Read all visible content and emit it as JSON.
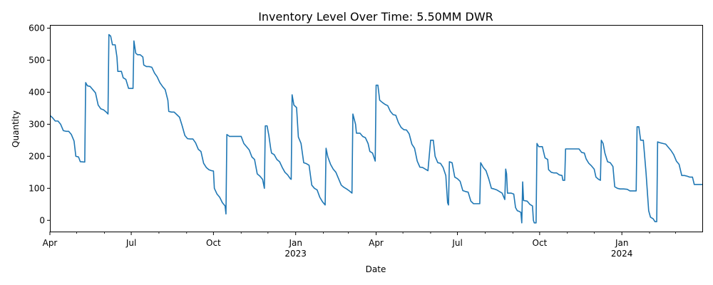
{
  "chart_data": {
    "type": "line",
    "title": "Inventory Level Over Time: 5.50MM DWR",
    "xlabel": "Date",
    "ylabel": "Quantity",
    "xlim": [
      "2022-04-01",
      "2024-03-31"
    ],
    "ylim": [
      -35,
      610
    ],
    "grid": false,
    "color": "#1f77b4",
    "x_ticks": [
      {
        "date": "2022-04-01",
        "label": "Apr",
        "sublabel": ""
      },
      {
        "date": "2022-07-01",
        "label": "Jul",
        "sublabel": ""
      },
      {
        "date": "2022-10-01",
        "label": "Oct",
        "sublabel": ""
      },
      {
        "date": "2023-01-01",
        "label": "Jan",
        "sublabel": "2023"
      },
      {
        "date": "2023-04-01",
        "label": "Apr",
        "sublabel": ""
      },
      {
        "date": "2023-07-01",
        "label": "Jul",
        "sublabel": ""
      },
      {
        "date": "2023-10-01",
        "label": "Oct",
        "sublabel": ""
      },
      {
        "date": "2024-01-01",
        "label": "Jan",
        "sublabel": "2024"
      }
    ],
    "y_ticks": [
      0,
      100,
      200,
      300,
      400,
      500,
      600
    ],
    "series": [
      {
        "name": "",
        "points": [
          [
            "2022-04-01",
            328
          ],
          [
            "2022-04-04",
            320
          ],
          [
            "2022-04-07",
            310
          ],
          [
            "2022-04-10",
            310
          ],
          [
            "2022-04-13",
            300
          ],
          [
            "2022-04-16",
            280
          ],
          [
            "2022-04-19",
            278
          ],
          [
            "2022-04-22",
            278
          ],
          [
            "2022-04-25",
            268
          ],
          [
            "2022-04-28",
            248
          ],
          [
            "2022-04-30",
            200
          ],
          [
            "2022-05-03",
            198
          ],
          [
            "2022-05-05",
            183
          ],
          [
            "2022-05-10",
            182
          ],
          [
            "2022-05-11",
            430
          ],
          [
            "2022-05-13",
            420
          ],
          [
            "2022-05-16",
            418
          ],
          [
            "2022-05-19",
            408
          ],
          [
            "2022-05-22",
            398
          ],
          [
            "2022-05-25",
            360
          ],
          [
            "2022-05-28",
            348
          ],
          [
            "2022-05-31",
            345
          ],
          [
            "2022-06-03",
            338
          ],
          [
            "2022-06-05",
            332
          ],
          [
            "2022-06-06",
            580
          ],
          [
            "2022-06-08",
            575
          ],
          [
            "2022-06-10",
            548
          ],
          [
            "2022-06-13",
            548
          ],
          [
            "2022-06-15",
            510
          ],
          [
            "2022-06-16",
            465
          ],
          [
            "2022-06-20",
            465
          ],
          [
            "2022-06-22",
            445
          ],
          [
            "2022-06-25",
            440
          ],
          [
            "2022-06-28",
            412
          ],
          [
            "2022-07-03",
            412
          ],
          [
            "2022-07-04",
            560
          ],
          [
            "2022-07-06",
            522
          ],
          [
            "2022-07-08",
            517
          ],
          [
            "2022-07-11",
            517
          ],
          [
            "2022-07-14",
            510
          ],
          [
            "2022-07-15",
            485
          ],
          [
            "2022-07-18",
            480
          ],
          [
            "2022-07-21",
            480
          ],
          [
            "2022-07-24",
            478
          ],
          [
            "2022-07-27",
            460
          ],
          [
            "2022-07-30",
            448
          ],
          [
            "2022-08-02",
            430
          ],
          [
            "2022-08-05",
            418
          ],
          [
            "2022-08-08",
            408
          ],
          [
            "2022-08-11",
            375
          ],
          [
            "2022-08-12",
            340
          ],
          [
            "2022-08-15",
            338
          ],
          [
            "2022-08-18",
            338
          ],
          [
            "2022-08-21",
            330
          ],
          [
            "2022-08-24",
            322
          ],
          [
            "2022-08-27",
            295
          ],
          [
            "2022-08-30",
            265
          ],
          [
            "2022-09-02",
            255
          ],
          [
            "2022-09-05",
            254
          ],
          [
            "2022-09-08",
            254
          ],
          [
            "2022-09-11",
            242
          ],
          [
            "2022-09-14",
            222
          ],
          [
            "2022-09-17",
            215
          ],
          [
            "2022-09-20",
            178
          ],
          [
            "2022-09-23",
            165
          ],
          [
            "2022-09-26",
            158
          ],
          [
            "2022-09-29",
            155
          ],
          [
            "2022-10-01",
            154
          ],
          [
            "2022-10-02",
            100
          ],
          [
            "2022-10-05",
            82
          ],
          [
            "2022-10-08",
            72
          ],
          [
            "2022-10-11",
            55
          ],
          [
            "2022-10-14",
            45
          ],
          [
            "2022-10-15",
            20
          ],
          [
            "2022-10-16",
            268
          ],
          [
            "2022-10-19",
            262
          ],
          [
            "2022-10-22",
            262
          ],
          [
            "2022-10-27",
            262
          ],
          [
            "2022-11-01",
            262
          ],
          [
            "2022-11-04",
            240
          ],
          [
            "2022-11-07",
            230
          ],
          [
            "2022-11-10",
            220
          ],
          [
            "2022-11-13",
            198
          ],
          [
            "2022-11-16",
            190
          ],
          [
            "2022-11-19",
            145
          ],
          [
            "2022-11-22",
            138
          ],
          [
            "2022-11-25",
            128
          ],
          [
            "2022-11-27",
            100
          ],
          [
            "2022-11-28",
            295
          ],
          [
            "2022-11-30",
            295
          ],
          [
            "2022-12-02",
            265
          ],
          [
            "2022-12-04",
            225
          ],
          [
            "2022-12-05",
            210
          ],
          [
            "2022-12-08",
            205
          ],
          [
            "2022-12-11",
            190
          ],
          [
            "2022-12-14",
            183
          ],
          [
            "2022-12-17",
            165
          ],
          [
            "2022-12-20",
            150
          ],
          [
            "2022-12-23",
            142
          ],
          [
            "2022-12-26",
            130
          ],
          [
            "2022-12-27",
            128
          ],
          [
            "2022-12-28",
            392
          ],
          [
            "2022-12-30",
            360
          ],
          [
            "2023-01-02",
            352
          ],
          [
            "2023-01-04",
            260
          ],
          [
            "2023-01-07",
            240
          ],
          [
            "2023-01-10",
            180
          ],
          [
            "2023-01-13",
            177
          ],
          [
            "2023-01-16",
            172
          ],
          [
            "2023-01-19",
            110
          ],
          [
            "2023-01-22",
            100
          ],
          [
            "2023-01-25",
            95
          ],
          [
            "2023-01-28",
            72
          ],
          [
            "2023-01-31",
            58
          ],
          [
            "2023-02-03",
            48
          ],
          [
            "2023-02-04",
            225
          ],
          [
            "2023-02-06",
            198
          ],
          [
            "2023-02-09",
            175
          ],
          [
            "2023-02-12",
            160
          ],
          [
            "2023-02-15",
            150
          ],
          [
            "2023-02-18",
            130
          ],
          [
            "2023-02-21",
            110
          ],
          [
            "2023-02-24",
            103
          ],
          [
            "2023-02-27",
            98
          ],
          [
            "2023-03-02",
            92
          ],
          [
            "2023-03-05",
            85
          ],
          [
            "2023-03-06",
            332
          ],
          [
            "2023-03-09",
            300
          ],
          [
            "2023-03-10",
            272
          ],
          [
            "2023-03-14",
            272
          ],
          [
            "2023-03-17",
            262
          ],
          [
            "2023-03-20",
            258
          ],
          [
            "2023-03-23",
            240
          ],
          [
            "2023-03-25",
            215
          ],
          [
            "2023-03-28",
            210
          ],
          [
            "2023-03-31",
            185
          ],
          [
            "2023-04-01",
            422
          ],
          [
            "2023-04-03",
            422
          ],
          [
            "2023-04-05",
            375
          ],
          [
            "2023-04-08",
            368
          ],
          [
            "2023-04-11",
            362
          ],
          [
            "2023-04-14",
            358
          ],
          [
            "2023-04-17",
            340
          ],
          [
            "2023-04-20",
            330
          ],
          [
            "2023-04-23",
            328
          ],
          [
            "2023-04-26",
            305
          ],
          [
            "2023-04-29",
            290
          ],
          [
            "2023-05-02",
            283
          ],
          [
            "2023-05-05",
            282
          ],
          [
            "2023-05-08",
            270
          ],
          [
            "2023-05-11",
            238
          ],
          [
            "2023-05-14",
            225
          ],
          [
            "2023-05-17",
            185
          ],
          [
            "2023-05-20",
            166
          ],
          [
            "2023-05-23",
            165
          ],
          [
            "2023-05-26",
            160
          ],
          [
            "2023-05-29",
            155
          ],
          [
            "2023-06-01",
            250
          ],
          [
            "2023-06-04",
            250
          ],
          [
            "2023-06-06",
            200
          ],
          [
            "2023-06-09",
            180
          ],
          [
            "2023-06-12",
            178
          ],
          [
            "2023-06-15",
            165
          ],
          [
            "2023-06-18",
            140
          ],
          [
            "2023-06-20",
            55
          ],
          [
            "2023-06-21",
            48
          ],
          [
            "2023-06-22",
            183
          ],
          [
            "2023-06-25",
            180
          ],
          [
            "2023-06-28",
            135
          ],
          [
            "2023-07-01",
            130
          ],
          [
            "2023-07-04",
            122
          ],
          [
            "2023-07-07",
            93
          ],
          [
            "2023-07-10",
            90
          ],
          [
            "2023-07-13",
            88
          ],
          [
            "2023-07-16",
            60
          ],
          [
            "2023-07-19",
            52
          ],
          [
            "2023-07-22",
            52
          ],
          [
            "2023-07-26",
            52
          ],
          [
            "2023-07-27",
            180
          ],
          [
            "2023-07-30",
            165
          ],
          [
            "2023-08-02",
            155
          ],
          [
            "2023-08-05",
            130
          ],
          [
            "2023-08-08",
            100
          ],
          [
            "2023-08-11",
            98
          ],
          [
            "2023-08-14",
            95
          ],
          [
            "2023-08-17",
            90
          ],
          [
            "2023-08-20",
            85
          ],
          [
            "2023-08-23",
            65
          ],
          [
            "2023-08-24",
            160
          ],
          [
            "2023-08-25",
            145
          ],
          [
            "2023-08-26",
            85
          ],
          [
            "2023-08-30",
            85
          ],
          [
            "2023-09-02",
            82
          ],
          [
            "2023-09-04",
            40
          ],
          [
            "2023-09-06",
            30
          ],
          [
            "2023-09-08",
            28
          ],
          [
            "2023-09-10",
            25
          ],
          [
            "2023-09-11",
            -8
          ],
          [
            "2023-09-12",
            120
          ],
          [
            "2023-09-13",
            62
          ],
          [
            "2023-09-17",
            60
          ],
          [
            "2023-09-20",
            50
          ],
          [
            "2023-09-23",
            45
          ],
          [
            "2023-09-24",
            0
          ],
          [
            "2023-09-25",
            -8
          ],
          [
            "2023-09-27",
            -8
          ],
          [
            "2023-09-28",
            240
          ],
          [
            "2023-09-30",
            230
          ],
          [
            "2023-10-04",
            230
          ],
          [
            "2023-10-07",
            195
          ],
          [
            "2023-10-10",
            190
          ],
          [
            "2023-10-11",
            158
          ],
          [
            "2023-10-14",
            150
          ],
          [
            "2023-10-17",
            148
          ],
          [
            "2023-10-20",
            148
          ],
          [
            "2023-10-23",
            142
          ],
          [
            "2023-10-26",
            140
          ],
          [
            "2023-10-27",
            125
          ],
          [
            "2023-10-29",
            125
          ],
          [
            "2023-10-30",
            223
          ],
          [
            "2023-11-02",
            223
          ],
          [
            "2023-11-06",
            223
          ],
          [
            "2023-11-10",
            223
          ],
          [
            "2023-11-14",
            223
          ],
          [
            "2023-11-17",
            212
          ],
          [
            "2023-11-20",
            210
          ],
          [
            "2023-11-22",
            192
          ],
          [
            "2023-11-25",
            178
          ],
          [
            "2023-11-28",
            170
          ],
          [
            "2023-12-01",
            160
          ],
          [
            "2023-12-03",
            135
          ],
          [
            "2023-12-06",
            128
          ],
          [
            "2023-12-08",
            125
          ],
          [
            "2023-12-09",
            250
          ],
          [
            "2023-12-11",
            240
          ],
          [
            "2023-12-13",
            210
          ],
          [
            "2023-12-16",
            183
          ],
          [
            "2023-12-19",
            180
          ],
          [
            "2023-12-22",
            168
          ],
          [
            "2023-12-24",
            105
          ],
          [
            "2023-12-27",
            100
          ],
          [
            "2023-12-30",
            98
          ],
          [
            "2024-01-03",
            98
          ],
          [
            "2024-01-07",
            97
          ],
          [
            "2024-01-10",
            92
          ],
          [
            "2024-01-13",
            92
          ],
          [
            "2024-01-17",
            92
          ],
          [
            "2024-01-18",
            292
          ],
          [
            "2024-01-20",
            292
          ],
          [
            "2024-01-22",
            250
          ],
          [
            "2024-01-25",
            250
          ],
          [
            "2024-01-28",
            150
          ],
          [
            "2024-01-31",
            30
          ],
          [
            "2024-02-02",
            10
          ],
          [
            "2024-02-05",
            5
          ],
          [
            "2024-02-07",
            -4
          ],
          [
            "2024-02-09",
            -4
          ],
          [
            "2024-02-10",
            245
          ],
          [
            "2024-02-13",
            242
          ],
          [
            "2024-02-16",
            240
          ],
          [
            "2024-02-19",
            238
          ],
          [
            "2024-02-22",
            228
          ],
          [
            "2024-02-25",
            218
          ],
          [
            "2024-02-28",
            205
          ],
          [
            "2024-03-02",
            185
          ],
          [
            "2024-03-05",
            175
          ],
          [
            "2024-03-08",
            140
          ],
          [
            "2024-03-11",
            140
          ],
          [
            "2024-03-14",
            138
          ],
          [
            "2024-03-17",
            135
          ],
          [
            "2024-03-20",
            135
          ],
          [
            "2024-03-22",
            112
          ],
          [
            "2024-03-31",
            112
          ]
        ]
      }
    ]
  }
}
